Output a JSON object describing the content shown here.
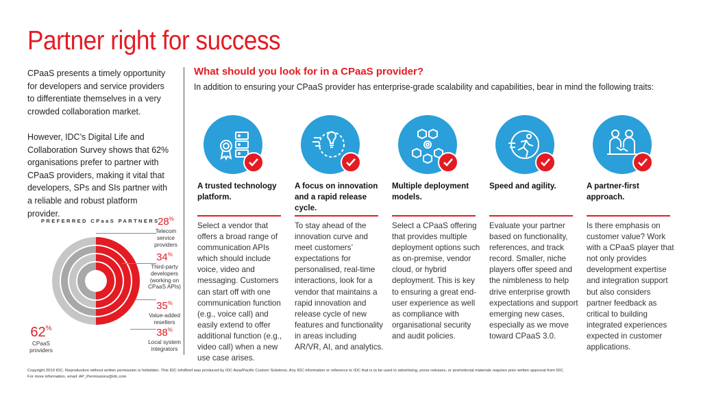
{
  "title": "Partner right for success",
  "intro": {
    "para1": "CPaaS presents a timely opportunity for developers and service providers to differentiate themselves in a very crowded collaboration market.",
    "para2": "However, IDC’s Digital Life and Collaboration Survey shows that 62% organisations prefer to partner with CPaaS providers, making it vital that developers, SPs and SIs partner with a reliable and robust platform provider."
  },
  "question": {
    "title": "What should you look for in a CPaaS provider?",
    "subtitle": "In addition to ensuring your CPaaS provider has enterprise-grade scalability and capabilities, bear in mind the following traits:"
  },
  "traits": [
    {
      "icon": "certificate-server-icon",
      "heading": "A trusted technology platform.",
      "body": "Select a vendor that offers a broad range of communication APIs which should include voice, video and messaging. Customers can start off with one communication function (e.g., voice call) and easily extend to offer additional function (e.g., video call) when a new use case arises."
    },
    {
      "icon": "innovation-bulb-icon",
      "heading": "A focus on innovation and a rapid release cycle.",
      "body": "To stay ahead of the innovation curve and meet customers’ expectations for personalised, real-time interactions, look for a vendor that maintains a rapid innovation and release cycle of new features and functionality in areas including AR/VR, AI, and analytics."
    },
    {
      "icon": "deployment-cubes-icon",
      "heading": "Multiple deployment models.",
      "body": "Select a CPaaS offering that provides multiple deployment options such as on-premise, vendor cloud, or hybrid deployment. This is key to ensuring a great end-user experience as well as compliance with organisational security and audit policies."
    },
    {
      "icon": "running-person-icon",
      "heading": "Speed and agility.",
      "body": "Evaluate your partner based on functionality, references, and track record. Smaller, niche players offer speed and the nimbleness to help drive enterprise growth expectations and support emerging new cases, especially as we move toward CPaaS 3.0."
    },
    {
      "icon": "partners-handshake-icon",
      "heading": "A partner-first approach.",
      "body": "Is there emphasis on customer value? Work with a CPaaS player that not only provides development expertise and integration support but also considers partner feedback as critical to building integrated experiences expected in customer applications."
    }
  ],
  "partners": {
    "label": "PREFERRED CPaaS PARTNERS",
    "items": [
      {
        "pct": "28",
        "unit": "%",
        "label": "Telecom service providers"
      },
      {
        "pct": "34",
        "unit": "%",
        "label": "Third-party developers (working on CPaaS APIs)"
      },
      {
        "pct": "35",
        "unit": "%",
        "label": "Value-added resellers"
      },
      {
        "pct": "38",
        "unit": "%",
        "label": "Local system integrators"
      }
    ],
    "main": {
      "pct": "62",
      "unit": "%",
      "label": "CPaaS providers"
    }
  },
  "footer": {
    "line1": "Copyright 2019 IDC. Reproduction without written permission is forbidden. This IDC InfoBrief was produced by IDC Asia/Pacific Custom Solutions. Any IDC information or reference to IDC that is to be used in advertising, press releases, or promotional materials requires prior written approval from IDC.",
    "line2": "For more information, email: AP_Permissions@idc.com"
  },
  "colors": {
    "accent": "#e31b23",
    "icon_blue": "#2b9fd9",
    "ring_grey": "#b5b5b5"
  }
}
